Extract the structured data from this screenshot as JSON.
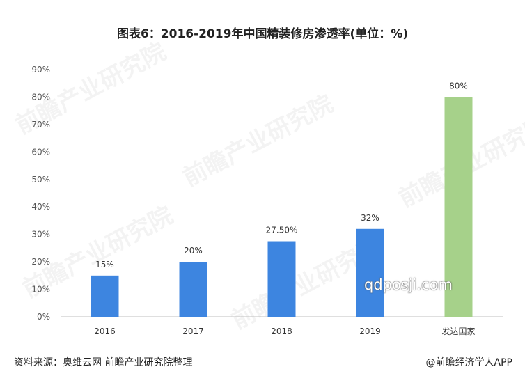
{
  "chart_data": {
    "type": "bar",
    "title": "图表6：2016-2019年中国精装修房渗透率(单位：%)",
    "categories": [
      "2016",
      "2017",
      "2018",
      "2019",
      "发达国家"
    ],
    "values": [
      15,
      20,
      27.5,
      32,
      80
    ],
    "data_labels": [
      "15%",
      "20%",
      "27.50%",
      "32%",
      "80%"
    ],
    "bar_colors": [
      "#3d85e0",
      "#3d85e0",
      "#3d85e0",
      "#3d85e0",
      "#a6d18a"
    ],
    "ylim": [
      0,
      90
    ],
    "yticks": [
      0,
      10,
      20,
      30,
      40,
      50,
      60,
      70,
      80,
      90
    ],
    "ytick_labels": [
      "0%",
      "10%",
      "20%",
      "30%",
      "40%",
      "50%",
      "60%",
      "70%",
      "80%",
      "90%"
    ],
    "grid": false,
    "xlabel": "",
    "ylabel": ""
  },
  "footer": {
    "source": "资料来源：奥维云网 前瞻产业研究院整理",
    "brand": "@前瞻经济学人APP"
  },
  "watermark": {
    "url": "qdposji.com",
    "brand": "前瞻产业研究院"
  }
}
